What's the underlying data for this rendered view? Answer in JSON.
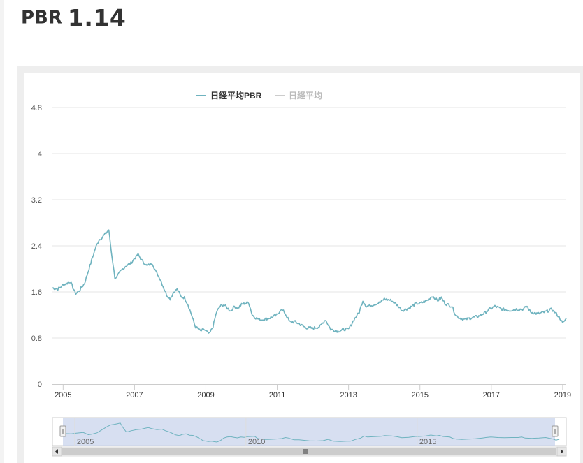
{
  "heading": {
    "label": "PBR",
    "value": "1.14"
  },
  "colors": {
    "series": "#6fb3bf",
    "hidden_series": "#cccccc",
    "grid": "#e6e6e6",
    "navigator_fill": "#c9d4ec",
    "scrollbar": "#cccccc"
  },
  "chart_data": {
    "type": "line",
    "legend": [
      {
        "name": "日経平均PBR",
        "visible": true
      },
      {
        "name": "日経平均",
        "visible": false
      }
    ],
    "legend_position": "top-center",
    "y_ticks": [
      "0",
      "0.8",
      "1.6",
      "2.4",
      "3.2",
      "4",
      "4.8"
    ],
    "ylim": [
      0,
      4.8
    ],
    "x_ticks": [
      "2005",
      "2007",
      "2009",
      "2011",
      "2013",
      "2015",
      "2017",
      "2019"
    ],
    "xlim": [
      2004.7,
      2019.1
    ],
    "grid": true,
    "navigator_ticks": [
      "2005",
      "2010",
      "2015"
    ],
    "series": [
      {
        "name": "日経平均PBR",
        "x": [
          2004.7,
          2004.85,
          2005.0,
          2005.2,
          2005.35,
          2005.45,
          2005.6,
          2005.7,
          2005.8,
          2005.9,
          2006.0,
          2006.1,
          2006.2,
          2006.28,
          2006.35,
          2006.45,
          2006.5,
          2006.6,
          2006.75,
          2006.9,
          2007.0,
          2007.1,
          2007.2,
          2007.35,
          2007.5,
          2007.6,
          2007.7,
          2007.8,
          2007.9,
          2008.0,
          2008.1,
          2008.2,
          2008.3,
          2008.4,
          2008.5,
          2008.6,
          2008.7,
          2008.8,
          2008.85,
          2008.95,
          2009.0,
          2009.1,
          2009.2,
          2009.3,
          2009.4,
          2009.5,
          2009.6,
          2009.7,
          2009.8,
          2009.9,
          2010.0,
          2010.2,
          2010.3,
          2010.4,
          2010.5,
          2010.6,
          2010.8,
          2011.0,
          2011.1,
          2011.2,
          2011.35,
          2011.5,
          2011.6,
          2011.8,
          2012.0,
          2012.2,
          2012.35,
          2012.5,
          2012.7,
          2012.9,
          2013.0,
          2013.15,
          2013.3,
          2013.4,
          2013.5,
          2013.7,
          2013.9,
          2014.0,
          2014.2,
          2014.35,
          2014.5,
          2014.7,
          2014.9,
          2015.0,
          2015.2,
          2015.35,
          2015.5,
          2015.6,
          2015.7,
          2015.9,
          2016.0,
          2016.1,
          2016.25,
          2016.45,
          2016.65,
          2016.85,
          2016.95,
          2017.1,
          2017.3,
          2017.5,
          2017.7,
          2017.9,
          2018.0,
          2018.1,
          2018.3,
          2018.5,
          2018.7,
          2018.85,
          2018.95,
          2019.0,
          2019.1
        ],
        "values": [
          1.67,
          1.65,
          1.72,
          1.78,
          1.57,
          1.62,
          1.75,
          1.95,
          2.15,
          2.35,
          2.5,
          2.55,
          2.62,
          2.68,
          2.3,
          1.85,
          1.85,
          1.95,
          2.05,
          2.1,
          2.18,
          2.25,
          2.15,
          2.05,
          2.1,
          1.95,
          1.85,
          1.7,
          1.55,
          1.48,
          1.6,
          1.65,
          1.52,
          1.5,
          1.38,
          1.2,
          1.0,
          0.95,
          0.92,
          0.95,
          0.92,
          0.87,
          1.0,
          1.25,
          1.35,
          1.38,
          1.32,
          1.27,
          1.35,
          1.32,
          1.38,
          1.42,
          1.2,
          1.15,
          1.12,
          1.12,
          1.15,
          1.2,
          1.3,
          1.25,
          1.08,
          1.08,
          1.05,
          0.98,
          0.97,
          1.0,
          1.12,
          0.95,
          0.92,
          0.95,
          0.95,
          1.12,
          1.25,
          1.45,
          1.35,
          1.38,
          1.42,
          1.48,
          1.45,
          1.38,
          1.28,
          1.32,
          1.4,
          1.4,
          1.45,
          1.53,
          1.45,
          1.5,
          1.4,
          1.35,
          1.2,
          1.15,
          1.12,
          1.15,
          1.18,
          1.25,
          1.3,
          1.35,
          1.3,
          1.28,
          1.3,
          1.3,
          1.35,
          1.25,
          1.22,
          1.25,
          1.3,
          1.2,
          1.12,
          1.05,
          1.14
        ]
      }
    ]
  }
}
